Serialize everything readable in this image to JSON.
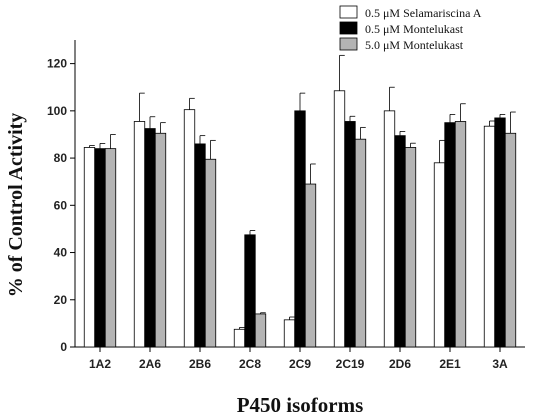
{
  "chart_data": {
    "type": "bar",
    "xlabel": "P450 isoforms",
    "ylabel": "% of Control Activity",
    "ylim": [
      0,
      130
    ],
    "yticks": [
      0,
      20,
      40,
      60,
      80,
      100,
      120
    ],
    "grid": false,
    "legend_position": "top-right",
    "categories": [
      "1A2",
      "2A6",
      "2B6",
      "2C8",
      "2C9",
      "2C19",
      "2D6",
      "2E1",
      "3A"
    ],
    "series": [
      {
        "name": "0.5 μM Selamariscina A",
        "color": "#ffffff",
        "values": [
          84.5,
          95.5,
          100.5,
          7.5,
          11.5,
          108.5,
          100.0,
          78.0,
          93.5
        ],
        "errors": [
          0.8,
          12.0,
          4.8,
          0.8,
          1.2,
          15.0,
          10.0,
          9.5,
          2.2
        ]
      },
      {
        "name": "0.5 μM Montelukast",
        "color": "#000000",
        "values": [
          84.0,
          92.5,
          86.0,
          47.5,
          100.0,
          95.5,
          89.5,
          95.0,
          97.0
        ],
        "errors": [
          2.2,
          5.0,
          3.5,
          1.8,
          7.5,
          2.2,
          1.8,
          3.5,
          1.5
        ]
      },
      {
        "name": "5.0 μM Montelukast",
        "color": "#b4b4b4",
        "values": [
          84.0,
          90.5,
          79.5,
          14.0,
          69.0,
          88.0,
          84.5,
          95.5,
          90.5
        ],
        "errors": [
          6.0,
          4.5,
          8.0,
          0.5,
          8.5,
          5.0,
          1.8,
          7.5,
          9.0
        ]
      }
    ]
  }
}
